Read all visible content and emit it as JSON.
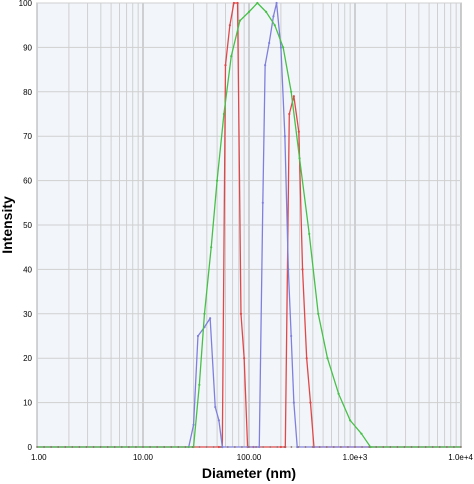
{
  "chart_data": {
    "type": "line",
    "title": "",
    "xlabel": "Diameter (nm)",
    "ylabel": "Intensity",
    "x_scale": "log",
    "xlim": [
      1,
      10000
    ],
    "ylim": [
      0,
      100
    ],
    "grid": true,
    "legend": "none",
    "x_ticks": [
      {
        "value": 1,
        "label": "1.00"
      },
      {
        "value": 10,
        "label": "10.00"
      },
      {
        "value": 100,
        "label": "100.00"
      },
      {
        "value": 1000,
        "label": "1.0e+3"
      },
      {
        "value": 10000,
        "label": "1.0e+4"
      }
    ],
    "y_ticks": [
      0,
      10,
      20,
      30,
      40,
      50,
      60,
      70,
      80,
      90,
      100
    ],
    "series": [
      {
        "color": "#e04848",
        "points": [
          [
            1,
            0
          ],
          [
            52,
            0
          ],
          [
            56,
            0
          ],
          [
            60,
            86
          ],
          [
            66,
            95
          ],
          [
            72,
            100
          ],
          [
            78,
            100
          ],
          [
            84,
            30
          ],
          [
            90,
            20
          ],
          [
            97,
            0
          ],
          [
            110,
            0
          ],
          [
            200,
            0
          ],
          [
            220,
            0
          ],
          [
            240,
            75
          ],
          [
            265,
            79
          ],
          [
            295,
            71
          ],
          [
            320,
            40
          ],
          [
            350,
            20
          ],
          [
            380,
            10
          ],
          [
            410,
            0
          ],
          [
            10000,
            0
          ]
        ]
      },
      {
        "color": "#8080dc",
        "points": [
          [
            1,
            0
          ],
          [
            27,
            0
          ],
          [
            30,
            5
          ],
          [
            33,
            25
          ],
          [
            38,
            27
          ],
          [
            43,
            29
          ],
          [
            48,
            9
          ],
          [
            52,
            6
          ],
          [
            56,
            0
          ],
          [
            125,
            0
          ],
          [
            135,
            55
          ],
          [
            142,
            86
          ],
          [
            155,
            91
          ],
          [
            170,
            97
          ],
          [
            182,
            100
          ],
          [
            200,
            90
          ],
          [
            218,
            70
          ],
          [
            235,
            40
          ],
          [
            250,
            25
          ],
          [
            265,
            10
          ],
          [
            285,
            0
          ],
          [
            10000,
            0
          ]
        ]
      },
      {
        "color": "#48c048",
        "points": [
          [
            1,
            0
          ],
          [
            30,
            0
          ],
          [
            34,
            14
          ],
          [
            38,
            30
          ],
          [
            44,
            45
          ],
          [
            50,
            60
          ],
          [
            58,
            75
          ],
          [
            68,
            88
          ],
          [
            82,
            96
          ],
          [
            100,
            98
          ],
          [
            120,
            100
          ],
          [
            145,
            98
          ],
          [
            175,
            95
          ],
          [
            210,
            90
          ],
          [
            250,
            80
          ],
          [
            300,
            65
          ],
          [
            370,
            48
          ],
          [
            450,
            30
          ],
          [
            550,
            20
          ],
          [
            700,
            12
          ],
          [
            900,
            6
          ],
          [
            1150,
            3
          ],
          [
            1400,
            0
          ],
          [
            10000,
            0
          ]
        ]
      }
    ]
  }
}
